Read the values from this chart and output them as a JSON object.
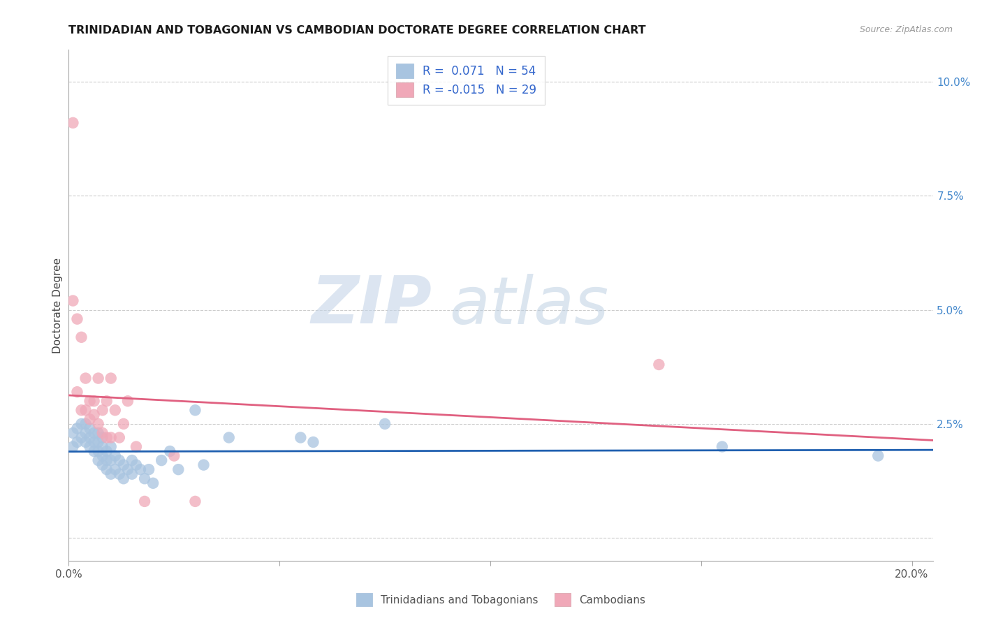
{
  "title": "TRINIDADIAN AND TOBAGONIAN VS CAMBODIAN DOCTORATE DEGREE CORRELATION CHART",
  "source": "Source: ZipAtlas.com",
  "ylabel": "Doctorate Degree",
  "blue_color": "#a8c4e0",
  "pink_color": "#f0a8b8",
  "blue_line_color": "#2060b0",
  "pink_line_color": "#e06080",
  "legend_text_color": "#3366cc",
  "watermark_zip_color": "#c8d8ec",
  "watermark_atlas_color": "#b8cce0",
  "blue_x": [
    0.001,
    0.001,
    0.002,
    0.002,
    0.003,
    0.003,
    0.004,
    0.004,
    0.004,
    0.005,
    0.005,
    0.005,
    0.006,
    0.006,
    0.006,
    0.007,
    0.007,
    0.007,
    0.007,
    0.008,
    0.008,
    0.008,
    0.008,
    0.009,
    0.009,
    0.009,
    0.01,
    0.01,
    0.01,
    0.011,
    0.011,
    0.012,
    0.012,
    0.013,
    0.013,
    0.014,
    0.015,
    0.015,
    0.016,
    0.017,
    0.018,
    0.019,
    0.02,
    0.022,
    0.024,
    0.026,
    0.03,
    0.032,
    0.038,
    0.055,
    0.058,
    0.075,
    0.155,
    0.192
  ],
  "blue_y": [
    0.02,
    0.023,
    0.021,
    0.024,
    0.022,
    0.025,
    0.021,
    0.023,
    0.025,
    0.02,
    0.022,
    0.024,
    0.019,
    0.021,
    0.023,
    0.017,
    0.019,
    0.021,
    0.023,
    0.016,
    0.018,
    0.02,
    0.022,
    0.015,
    0.017,
    0.019,
    0.014,
    0.017,
    0.02,
    0.015,
    0.018,
    0.014,
    0.017,
    0.013,
    0.016,
    0.015,
    0.014,
    0.017,
    0.016,
    0.015,
    0.013,
    0.015,
    0.012,
    0.017,
    0.019,
    0.015,
    0.028,
    0.016,
    0.022,
    0.022,
    0.021,
    0.025,
    0.02,
    0.018
  ],
  "pink_x": [
    0.001,
    0.001,
    0.002,
    0.002,
    0.003,
    0.003,
    0.004,
    0.004,
    0.005,
    0.005,
    0.006,
    0.006,
    0.007,
    0.007,
    0.008,
    0.008,
    0.009,
    0.009,
    0.01,
    0.01,
    0.011,
    0.012,
    0.013,
    0.014,
    0.016,
    0.018,
    0.025,
    0.03,
    0.14
  ],
  "pink_y": [
    0.091,
    0.052,
    0.048,
    0.032,
    0.044,
    0.028,
    0.035,
    0.028,
    0.03,
    0.026,
    0.03,
    0.027,
    0.035,
    0.025,
    0.023,
    0.028,
    0.03,
    0.022,
    0.022,
    0.035,
    0.028,
    0.022,
    0.025,
    0.03,
    0.02,
    0.008,
    0.018,
    0.008,
    0.038
  ],
  "xlim": [
    0.0,
    0.205
  ],
  "ylim": [
    -0.005,
    0.107
  ],
  "xtick_positions": [
    0.0,
    0.05,
    0.1,
    0.15,
    0.2
  ],
  "xtick_labels": [
    "0.0%",
    "",
    "",
    "",
    "20.0%"
  ],
  "ytick_positions": [
    0.0,
    0.025,
    0.05,
    0.075,
    0.1
  ],
  "ytick_labels": [
    "",
    "2.5%",
    "5.0%",
    "7.5%",
    "10.0%"
  ]
}
